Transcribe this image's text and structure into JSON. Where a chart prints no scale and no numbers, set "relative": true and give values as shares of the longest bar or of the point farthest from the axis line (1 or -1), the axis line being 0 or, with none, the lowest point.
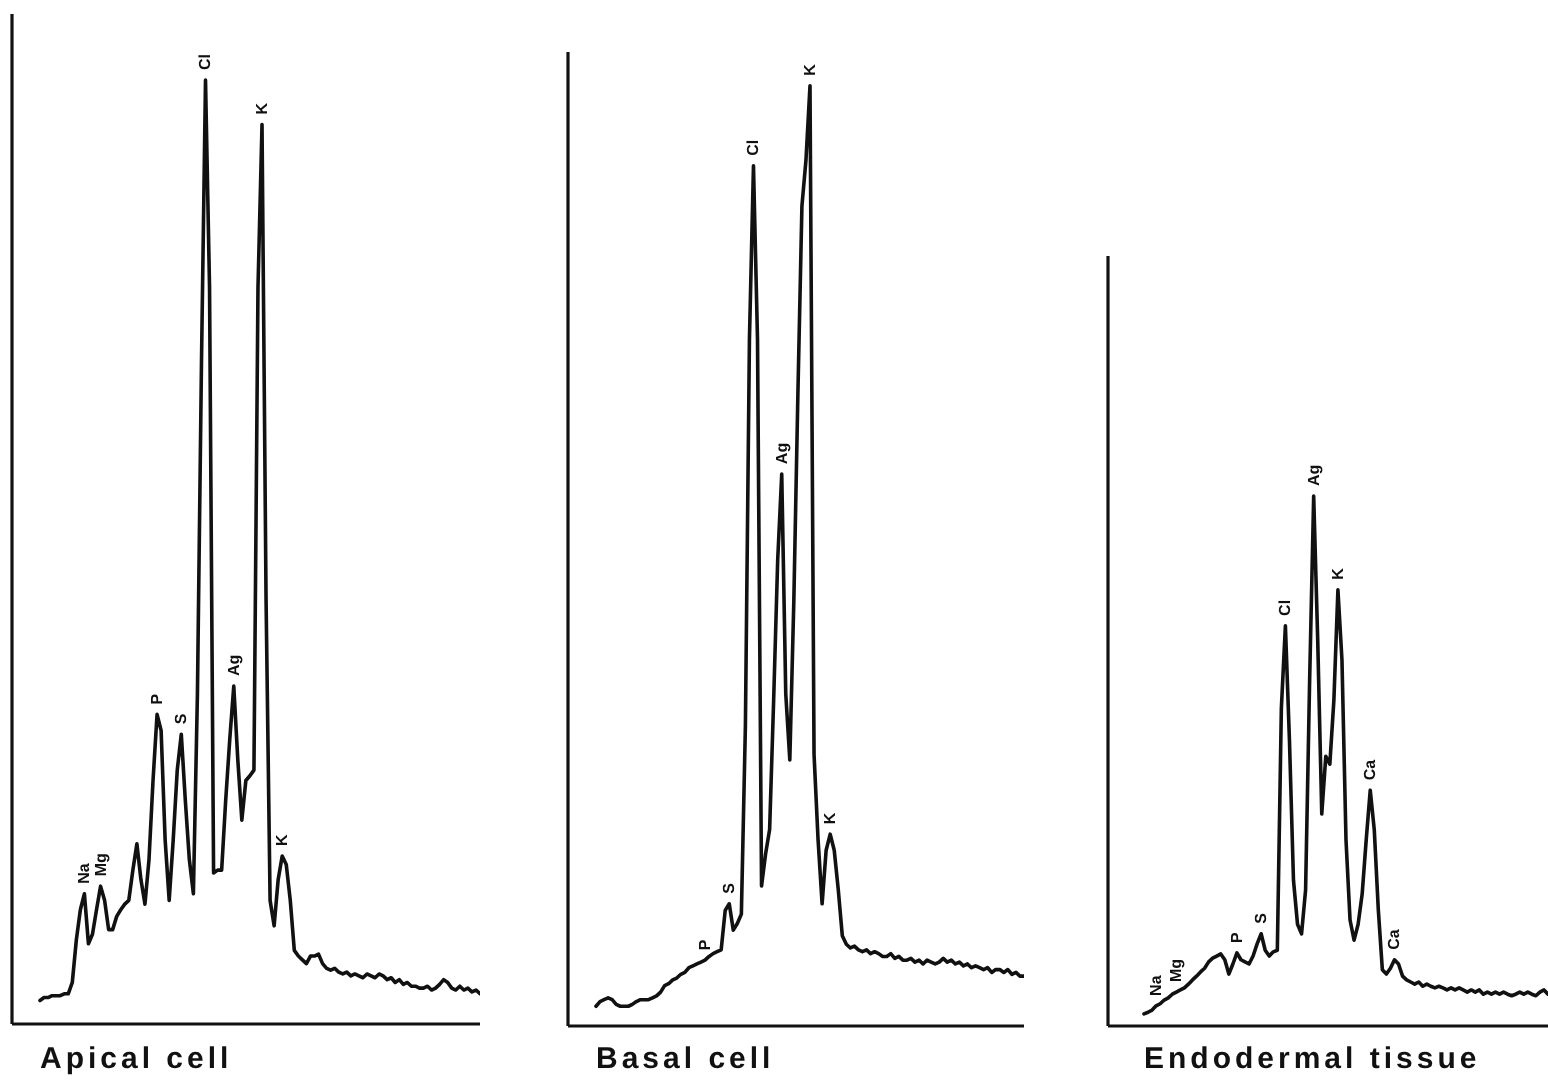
{
  "chart_data": [
    {
      "type": "line",
      "relative": true,
      "xlabel": "Apical cell",
      "color": "#111111",
      "categories": [
        null,
        null,
        null,
        null,
        null,
        null,
        null,
        null,
        null,
        null,
        null,
        null,
        null,
        null,
        null,
        null,
        null,
        null,
        null,
        null,
        null,
        null,
        null,
        null,
        null,
        null,
        null,
        null,
        null,
        null,
        null,
        null,
        null,
        null,
        null,
        null,
        null,
        null,
        null,
        null,
        null,
        null,
        null,
        null,
        null,
        null,
        null,
        null,
        null,
        null,
        null,
        null,
        null,
        null,
        null,
        null,
        null,
        null,
        null,
        null,
        null,
        null,
        null,
        null,
        null,
        null,
        null,
        null,
        null,
        null,
        null,
        null,
        null,
        null,
        null,
        null,
        null,
        null,
        null,
        null,
        null,
        null,
        null,
        null,
        null,
        null,
        null,
        null,
        null,
        null,
        null,
        null,
        null,
        null,
        null,
        null,
        null,
        null,
        null,
        null,
        null,
        null,
        null,
        null,
        null,
        null,
        null,
        null,
        null,
        null
      ],
      "values": [
        0.025,
        0.028,
        0.028,
        0.03,
        0.03,
        0.03,
        0.032,
        0.032,
        0.044,
        0.089,
        0.121,
        0.138,
        0.085,
        0.095,
        0.121,
        0.146,
        0.131,
        0.1,
        0.1,
        0.114,
        0.121,
        0.127,
        0.131,
        0.163,
        0.191,
        0.153,
        0.127,
        0.174,
        0.258,
        0.328,
        0.311,
        0.195,
        0.131,
        0.195,
        0.269,
        0.307,
        0.237,
        0.174,
        0.138,
        0.35,
        0.7,
        1,
        0.78,
        0.16,
        0.163,
        0.163,
        0.237,
        0.301,
        0.358,
        0.28,
        0.216,
        0.258,
        0.263,
        0.269,
        0.78,
        0.953,
        0.45,
        0.131,
        0.104,
        0.153,
        0.178,
        0.169,
        0.131,
        0.078,
        0.072,
        0.068,
        0.064,
        0.072,
        0.072,
        0.074,
        0.064,
        0.059,
        0.057,
        0.059,
        0.055,
        0.053,
        0.055,
        0.051,
        0.053,
        0.051,
        0.049,
        0.053,
        0.051,
        0.049,
        0.053,
        0.051,
        0.047,
        0.049,
        0.044,
        0.047,
        0.042,
        0.044,
        0.04,
        0.04,
        0.038,
        0.038,
        0.04,
        0.036,
        0.038,
        0.042,
        0.047,
        0.044,
        0.038,
        0.036,
        0.04,
        0.036,
        0.038,
        0.034,
        0.036,
        0.032
      ],
      "annotations": [
        {
          "text": "Na",
          "y": 0.138
        },
        {
          "text": "Mg",
          "y": 0.146
        },
        {
          "text": "P",
          "y": 0.328
        },
        {
          "text": "S",
          "y": 0.307
        },
        {
          "text": "Cl",
          "y": 1
        },
        {
          "text": "Ag",
          "y": 0.358
        },
        {
          "text": "K",
          "y": 0.953
        },
        {
          "text": "K",
          "y": 0.178
        }
      ]
    },
    {
      "type": "line",
      "relative": true,
      "xlabel": "Basal cell",
      "color": "#111111",
      "categories": [
        null,
        null,
        null,
        null,
        null,
        null,
        null,
        null,
        null,
        null,
        null,
        null,
        null,
        null,
        null,
        null,
        null,
        null,
        null,
        null,
        null,
        null,
        null,
        null,
        null,
        null,
        null,
        null,
        null,
        null,
        null,
        null,
        null,
        null,
        null,
        null,
        null,
        null,
        null,
        null,
        null,
        null,
        null,
        null,
        null,
        null,
        null,
        null,
        null,
        null,
        null,
        null,
        null,
        null,
        null,
        null,
        null,
        null,
        null,
        null,
        null,
        null,
        null,
        null,
        null,
        null,
        null,
        null,
        null,
        null,
        null,
        null,
        null,
        null,
        null,
        null,
        null,
        null,
        null,
        null,
        null,
        null,
        null,
        null,
        null,
        null,
        null,
        null,
        null,
        null,
        null,
        null,
        null,
        null,
        null,
        null,
        null,
        null,
        null,
        null,
        null,
        null,
        null,
        null,
        null,
        null,
        null
      ],
      "values": [
        0.021,
        0.026,
        0.028,
        0.03,
        0.028,
        0.023,
        0.021,
        0.021,
        0.021,
        0.023,
        0.026,
        0.028,
        0.028,
        0.028,
        0.03,
        0.032,
        0.036,
        0.043,
        0.045,
        0.049,
        0.051,
        0.055,
        0.057,
        0.062,
        0.064,
        0.066,
        0.068,
        0.07,
        0.074,
        0.077,
        0.079,
        0.081,
        0.123,
        0.13,
        0.102,
        0.109,
        0.119,
        0.319,
        0.73,
        0.915,
        0.73,
        0.149,
        0.183,
        0.209,
        0.347,
        0.496,
        0.587,
        0.353,
        0.283,
        0.453,
        0.672,
        0.872,
        0.921,
        1,
        0.289,
        0.198,
        0.13,
        0.187,
        0.204,
        0.187,
        0.145,
        0.096,
        0.087,
        0.083,
        0.085,
        0.081,
        0.079,
        0.081,
        0.077,
        0.079,
        0.077,
        0.074,
        0.074,
        0.077,
        0.072,
        0.074,
        0.07,
        0.07,
        0.072,
        0.068,
        0.07,
        0.066,
        0.07,
        0.068,
        0.066,
        0.068,
        0.072,
        0.068,
        0.07,
        0.066,
        0.068,
        0.064,
        0.066,
        0.062,
        0.064,
        0.062,
        0.06,
        0.062,
        0.057,
        0.06,
        0.06,
        0.057,
        0.06,
        0.055,
        0.057,
        0.053,
        0.053
      ],
      "annotations": [
        {
          "text": "P",
          "y": 0.07
        },
        {
          "text": "S",
          "y": 0.13
        },
        {
          "text": "Cl",
          "y": 0.915
        },
        {
          "text": "Ag",
          "y": 0.587
        },
        {
          "text": "K",
          "y": 1
        },
        {
          "text": "K",
          "y": 0.204
        }
      ]
    },
    {
      "type": "line",
      "relative": true,
      "xlabel": "Endodermal tissue",
      "color": "#111111",
      "categories": [
        null,
        null,
        null,
        null,
        null,
        null,
        null,
        null,
        null,
        null,
        null,
        null,
        null,
        null,
        null,
        null,
        null,
        null,
        null,
        null,
        null,
        null,
        null,
        null,
        null,
        null,
        null,
        null,
        null,
        null,
        null,
        null,
        null,
        null,
        null,
        null,
        null,
        null,
        null,
        null,
        null,
        null,
        null,
        null,
        null,
        null,
        null,
        null,
        null,
        null,
        null,
        null,
        null,
        null,
        null,
        null,
        null,
        null,
        null,
        null,
        null,
        null,
        null,
        null,
        null,
        null,
        null,
        null,
        null,
        null,
        null,
        null,
        null,
        null,
        null,
        null,
        null,
        null,
        null,
        null,
        null,
        null,
        null,
        null,
        null,
        null,
        null,
        null,
        null,
        null,
        null,
        null,
        null,
        null,
        null,
        null,
        null,
        null,
        null,
        null,
        null
      ],
      "values": [
        0.023,
        0.026,
        0.03,
        0.038,
        0.042,
        0.049,
        0.053,
        0.06,
        0.064,
        0.068,
        0.072,
        0.079,
        0.087,
        0.094,
        0.102,
        0.109,
        0.121,
        0.128,
        0.132,
        0.136,
        0.125,
        0.098,
        0.117,
        0.138,
        0.125,
        0.121,
        0.117,
        0.132,
        0.155,
        0.174,
        0.143,
        0.132,
        0.14,
        0.143,
        0.6,
        0.755,
        0.54,
        0.275,
        0.192,
        0.174,
        0.257,
        0.653,
        1,
        0.728,
        0.4,
        0.509,
        0.494,
        0.615,
        0.823,
        0.691,
        0.351,
        0.2,
        0.162,
        0.192,
        0.249,
        0.351,
        0.445,
        0.37,
        0.219,
        0.106,
        0.098,
        0.109,
        0.125,
        0.117,
        0.094,
        0.087,
        0.083,
        0.079,
        0.083,
        0.075,
        0.079,
        0.075,
        0.072,
        0.075,
        0.072,
        0.068,
        0.072,
        0.068,
        0.072,
        0.068,
        0.064,
        0.068,
        0.064,
        0.068,
        0.06,
        0.064,
        0.06,
        0.064,
        0.06,
        0.064,
        0.06,
        0.057,
        0.06,
        0.064,
        0.06,
        0.064,
        0.06,
        0.057,
        0.064,
        0.068,
        0.06
      ],
      "annotations": [
        {
          "text": "Na",
          "y": 0.038
        },
        {
          "text": "Mg",
          "y": 0.064
        },
        {
          "text": "P",
          "y": 0.138
        },
        {
          "text": "S",
          "y": 0.174
        },
        {
          "text": "Cl",
          "y": 0.755
        },
        {
          "text": "Ag",
          "y": 1
        },
        {
          "text": "K",
          "y": 0.823
        },
        {
          "text": "Ca",
          "y": 0.445
        },
        {
          "text": "Ca",
          "y": 0.125
        }
      ]
    }
  ]
}
